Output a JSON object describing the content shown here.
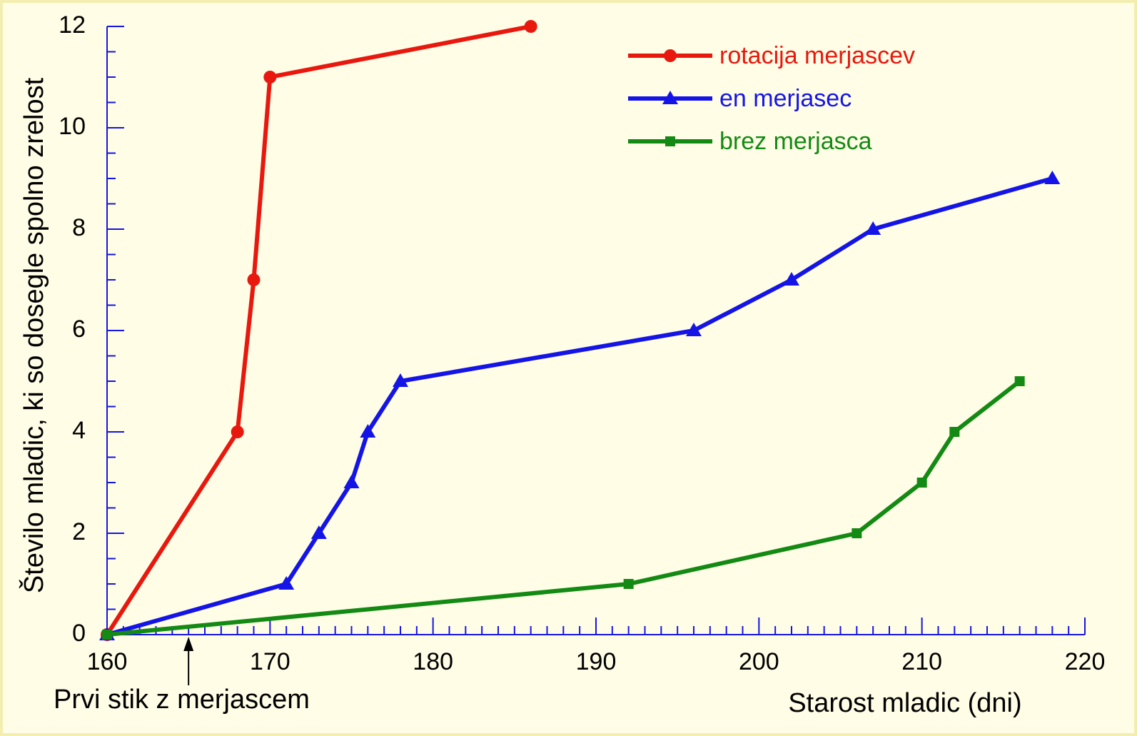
{
  "chart_data": {
    "type": "line",
    "xlabel": "Starost mladic (dni)",
    "ylabel": "Število mladic, ki so dosegle spolno zrelost",
    "xlim": [
      160,
      220
    ],
    "ylim": [
      0,
      12
    ],
    "xticks": [
      160,
      170,
      180,
      190,
      200,
      210,
      220
    ],
    "yticks": [
      0,
      2,
      4,
      6,
      8,
      10,
      12
    ],
    "xminorticks": [
      161,
      162,
      163,
      164,
      165,
      166,
      167,
      168,
      169,
      171,
      172,
      173,
      174,
      175,
      176,
      177,
      178,
      179,
      181,
      182,
      183,
      184,
      185,
      186,
      187,
      188,
      189,
      191,
      192,
      193,
      194,
      195,
      196,
      197,
      198,
      199,
      201,
      202,
      203,
      204,
      205,
      206,
      207,
      208,
      209,
      211,
      212,
      213,
      214,
      215,
      216,
      217,
      218,
      219
    ],
    "yminorticks": [
      0.5,
      1,
      1.5,
      2.5,
      3,
      3.5,
      4.5,
      5,
      5.5,
      6.5,
      7,
      7.5,
      8.5,
      9,
      9.5,
      10.5,
      11,
      11.5
    ],
    "legend": "upper right",
    "annotations": [
      {
        "text": "Prvi stik z merjascem",
        "x": 165
      }
    ],
    "series": [
      {
        "name": "rotacija merjascev",
        "color": "#e8180e",
        "marker": "circle",
        "x": [
          160,
          168,
          169,
          170,
          186
        ],
        "values": [
          0,
          4,
          7,
          11,
          12
        ]
      },
      {
        "name": "en merjasec",
        "color": "#1414e6",
        "marker": "triangle",
        "x": [
          160,
          171,
          173,
          175,
          176,
          178,
          196,
          202,
          207,
          218
        ],
        "values": [
          0,
          1,
          2,
          3,
          4,
          5,
          6,
          7,
          8,
          9
        ]
      },
      {
        "name": "brez merjasca",
        "color": "#138a13",
        "marker": "square",
        "x": [
          160,
          192,
          206,
          210,
          212,
          216
        ],
        "values": [
          0,
          1,
          2,
          3,
          4,
          5
        ]
      }
    ]
  }
}
